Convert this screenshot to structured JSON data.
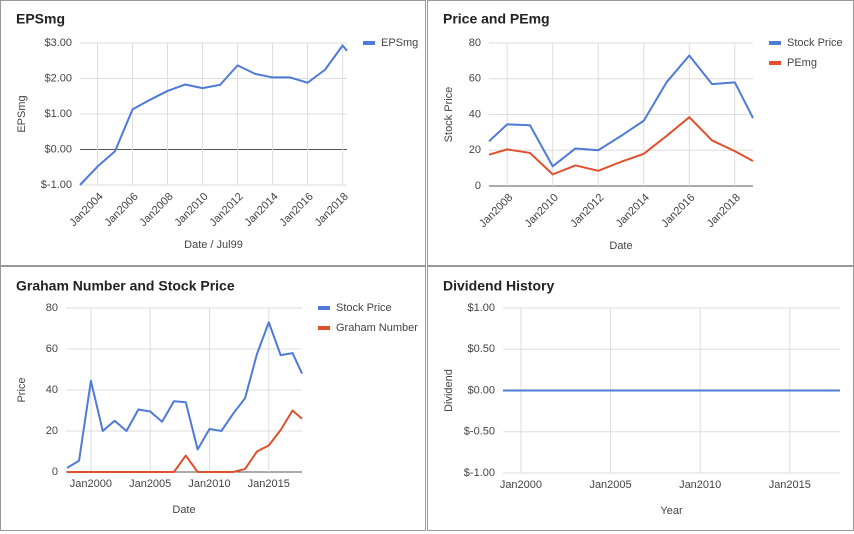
{
  "chart_data": [
    {
      "type": "line",
      "title": "EPSmg",
      "xlabel": "Date / Jul99",
      "ylabel": "EPSmg",
      "legend": "right",
      "grid": true,
      "x": [
        2003,
        2004,
        2005,
        2006,
        2007,
        2008,
        2009,
        2010,
        2011,
        2012,
        2013,
        2014,
        2015,
        2016,
        2017,
        2018,
        2018.25
      ],
      "series": [
        {
          "name": "EPSmg",
          "color": "#4e7ad8",
          "values": [
            -1.0,
            -0.48,
            -0.05,
            1.13,
            1.4,
            1.65,
            1.83,
            1.73,
            1.82,
            2.37,
            2.13,
            2.03,
            2.03,
            1.88,
            2.25,
            2.93,
            2.78
          ]
        }
      ],
      "xlim": [
        2003,
        2018.25
      ],
      "xticks": [
        {
          "value": 2004,
          "label": "Jan2004"
        },
        {
          "value": 2006,
          "label": "Jan2006"
        },
        {
          "value": 2008,
          "label": "Jan2008"
        },
        {
          "value": 2010,
          "label": "Jan2010"
        },
        {
          "value": 2012,
          "label": "Jan2012"
        },
        {
          "value": 2014,
          "label": "Jan2014"
        },
        {
          "value": 2016,
          "label": "Jan2016"
        },
        {
          "value": 2018,
          "label": "Jan2018"
        }
      ],
      "ylim": [
        -1,
        3
      ],
      "yticks": [
        {
          "value": -1,
          "label": "$-1.00"
        },
        {
          "value": 0,
          "label": "$0.00"
        },
        {
          "value": 1,
          "label": "$1.00"
        },
        {
          "value": 2,
          "label": "$2.00"
        },
        {
          "value": 3,
          "label": "$3.00"
        }
      ]
    },
    {
      "type": "line",
      "title": "Price and PEmg",
      "xlabel": "Date",
      "ylabel": "Stock Price",
      "legend": "right",
      "grid": true,
      "x": [
        2007.2,
        2008,
        2009,
        2010,
        2011,
        2012,
        2013,
        2014,
        2015,
        2016,
        2017,
        2018,
        2018.8
      ],
      "series": [
        {
          "name": "Stock Price",
          "color": "#4e7ad8",
          "values": [
            25,
            34.5,
            34,
            11,
            21,
            20,
            28,
            36.5,
            58,
            73,
            57,
            58,
            38
          ]
        },
        {
          "name": "PEmg",
          "color": "#e0502d",
          "values": [
            17.5,
            20.5,
            18.5,
            6.5,
            11.5,
            8.5,
            13.5,
            18,
            28,
            38.5,
            25.5,
            19.5,
            14
          ]
        }
      ],
      "xlim": [
        2007.2,
        2018.8
      ],
      "xticks": [
        {
          "value": 2008,
          "label": "Jan2008"
        },
        {
          "value": 2010,
          "label": "Jan2010"
        },
        {
          "value": 2012,
          "label": "Jan2012"
        },
        {
          "value": 2014,
          "label": "Jan2014"
        },
        {
          "value": 2016,
          "label": "Jan2016"
        },
        {
          "value": 2018,
          "label": "Jan2018"
        }
      ],
      "ylim": [
        0,
        80
      ],
      "yticks": [
        0,
        20,
        40,
        60,
        80
      ]
    },
    {
      "type": "line",
      "title": "Graham Number and Stock Price",
      "xlabel": "Date",
      "ylabel": "Price",
      "legend": "right",
      "grid": true,
      "x": [
        1998,
        1999,
        2000,
        2001,
        2002,
        2003,
        2004,
        2005,
        2006,
        2007,
        2008,
        2009,
        2010,
        2011,
        2012,
        2013,
        2014,
        2015,
        2016,
        2017,
        2017.8
      ],
      "series": [
        {
          "name": "Stock Price",
          "color": "#4e7ad8",
          "values": [
            2,
            5.5,
            44.5,
            20,
            25,
            20,
            30.5,
            29.5,
            24.5,
            34.5,
            34,
            11,
            21,
            20,
            28.5,
            36,
            57.5,
            73,
            57,
            58,
            48
          ]
        },
        {
          "name": "Graham Number",
          "color": "#e0502d",
          "values": [
            0,
            0,
            0,
            0,
            0,
            0,
            0,
            0,
            0,
            0,
            8,
            0,
            0,
            0,
            0,
            1.5,
            10,
            13,
            20.5,
            30,
            26
          ]
        }
      ],
      "xlim": [
        1997.9,
        2017.8
      ],
      "xticks": [
        {
          "value": 2000,
          "label": "Jan2000"
        },
        {
          "value": 2005,
          "label": "Jan2005"
        },
        {
          "value": 2010,
          "label": "Jan2010"
        },
        {
          "value": 2015,
          "label": "Jan2015"
        }
      ],
      "ylim": [
        0,
        80
      ],
      "yticks": [
        0,
        20,
        40,
        60,
        80
      ]
    },
    {
      "type": "line",
      "title": "Dividend History",
      "xlabel": "Year",
      "ylabel": "Dividend",
      "grid": true,
      "x": [
        1999,
        2017.8
      ],
      "series": [
        {
          "color": "#4e7ad8",
          "values": [
            0,
            0
          ]
        }
      ],
      "xlim": [
        1999,
        2017.8
      ],
      "xticks": [
        {
          "value": 2000,
          "label": "Jan2000"
        },
        {
          "value": 2005,
          "label": "Jan2005"
        },
        {
          "value": 2010,
          "label": "Jan2010"
        },
        {
          "value": 2015,
          "label": "Jan2015"
        }
      ],
      "ylim": [
        -1,
        1
      ],
      "yticks": [
        {
          "value": -1,
          "label": "$-1.00"
        },
        {
          "value": -0.5,
          "label": "$-0.50"
        },
        {
          "value": 0,
          "label": "$0.00"
        },
        {
          "value": 0.5,
          "label": "$0.50"
        },
        {
          "value": 1,
          "label": "$1.00"
        }
      ]
    }
  ]
}
